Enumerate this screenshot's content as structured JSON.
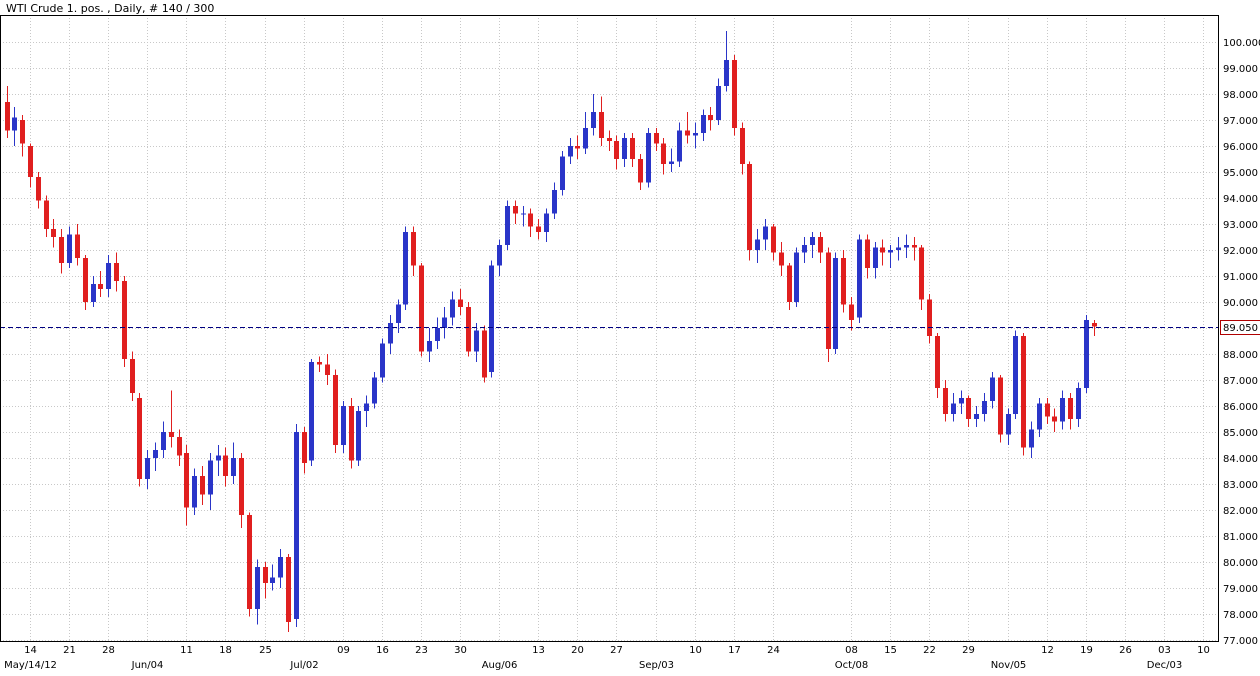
{
  "window": {
    "title": "WTI Crude 1. pos. , Daily, # 140 / 300"
  },
  "chart_data": {
    "type": "candlestick",
    "title": "WTI Crude 1. pos. , Daily, # 140 / 300",
    "instrument": "WTI Crude 1. pos.",
    "period": "Daily",
    "bars_shown": 140,
    "bars_total": 300,
    "ylim": [
      77,
      100
    ],
    "y_tick_step": 1,
    "y_axis_side": "right",
    "grid": true,
    "y_tick_labels": [
      "100.000",
      "99.000",
      "98.000",
      "97.000",
      "96.000",
      "95.000",
      "94.000",
      "93.000",
      "92.000",
      "91.000",
      "90.000",
      "89.000",
      "88.000",
      "87.000",
      "86.000",
      "85.000",
      "84.000",
      "83.000",
      "82.000",
      "81.000",
      "80.000",
      "79.000",
      "78.000",
      "77.000"
    ],
    "x_week_ticks": [
      {
        "i": 3,
        "label": "14"
      },
      {
        "i": 8,
        "label": "21"
      },
      {
        "i": 13,
        "label": "28"
      },
      {
        "i": 18,
        "label": ""
      },
      {
        "i": 23,
        "label": "11"
      },
      {
        "i": 28,
        "label": "18"
      },
      {
        "i": 33,
        "label": "25"
      },
      {
        "i": 38,
        "label": ""
      },
      {
        "i": 43,
        "label": "09"
      },
      {
        "i": 48,
        "label": "16"
      },
      {
        "i": 53,
        "label": "23"
      },
      {
        "i": 58,
        "label": "30"
      },
      {
        "i": 63,
        "label": ""
      },
      {
        "i": 68,
        "label": "13"
      },
      {
        "i": 73,
        "label": "20"
      },
      {
        "i": 78,
        "label": "27"
      },
      {
        "i": 83,
        "label": ""
      },
      {
        "i": 88,
        "label": "10"
      },
      {
        "i": 93,
        "label": "17"
      },
      {
        "i": 98,
        "label": "24"
      },
      {
        "i": 108,
        "label": "08"
      },
      {
        "i": 113,
        "label": "15"
      },
      {
        "i": 118,
        "label": "22"
      },
      {
        "i": 123,
        "label": "29"
      },
      {
        "i": 128,
        "label": ""
      },
      {
        "i": 133,
        "label": "12"
      },
      {
        "i": 138,
        "label": "19"
      },
      {
        "i": 143,
        "label": "26"
      },
      {
        "i": 148,
        "label": "03"
      },
      {
        "i": 153,
        "label": "10"
      }
    ],
    "x_month_ticks": [
      {
        "i": 3,
        "label": "May/14/12"
      },
      {
        "i": 18,
        "label": "Jun/04"
      },
      {
        "i": 38,
        "label": "Jul/02"
      },
      {
        "i": 63,
        "label": "Aug/06"
      },
      {
        "i": 83,
        "label": "Sep/03"
      },
      {
        "i": 108,
        "label": "Oct/08"
      },
      {
        "i": 128,
        "label": "Nov/05"
      },
      {
        "i": 148,
        "label": "Dec/03"
      }
    ],
    "price_line": {
      "value": 89.05,
      "label": "89.050"
    },
    "colors": {
      "up": "#2a35c8",
      "down": "#e01f1f",
      "grid": "#c8c8c8",
      "border": "#000000",
      "price_line": "#000080",
      "price_label": "#b00000",
      "axis_text": "#000000",
      "background": "#ffffff"
    },
    "ohlc": [
      [
        97.7,
        98.3,
        96.3,
        96.6
      ],
      [
        96.6,
        97.5,
        96.0,
        97.1
      ],
      [
        97.0,
        97.2,
        95.6,
        96.1
      ],
      [
        96.0,
        96.1,
        94.4,
        94.8
      ],
      [
        94.8,
        95.0,
        93.6,
        93.9
      ],
      [
        93.9,
        94.1,
        92.5,
        92.8
      ],
      [
        92.8,
        93.2,
        92.1,
        92.5
      ],
      [
        92.5,
        92.8,
        91.1,
        91.5
      ],
      [
        91.5,
        92.9,
        91.3,
        92.6
      ],
      [
        92.6,
        93.0,
        91.4,
        91.7
      ],
      [
        91.7,
        91.8,
        89.7,
        90.0
      ],
      [
        90.0,
        91.0,
        89.8,
        90.7
      ],
      [
        90.7,
        91.2,
        90.2,
        90.5
      ],
      [
        90.5,
        91.8,
        90.2,
        91.5
      ],
      [
        91.5,
        91.9,
        90.4,
        90.8
      ],
      [
        90.8,
        91.0,
        87.5,
        87.8
      ],
      [
        87.8,
        88.1,
        86.2,
        86.5
      ],
      [
        86.3,
        86.5,
        82.9,
        83.2
      ],
      [
        83.2,
        84.3,
        82.8,
        84.0
      ],
      [
        84.0,
        84.6,
        83.5,
        84.3
      ],
      [
        84.3,
        85.4,
        84.0,
        85.0
      ],
      [
        85.0,
        86.6,
        84.4,
        84.8
      ],
      [
        84.8,
        85.1,
        83.7,
        84.1
      ],
      [
        84.2,
        84.5,
        81.4,
        82.1
      ],
      [
        82.1,
        83.6,
        81.8,
        83.3
      ],
      [
        83.3,
        83.7,
        82.2,
        82.6
      ],
      [
        82.6,
        84.2,
        82.0,
        83.9
      ],
      [
        83.9,
        84.5,
        83.3,
        84.1
      ],
      [
        84.1,
        84.4,
        82.9,
        83.3
      ],
      [
        83.3,
        84.6,
        83.0,
        84.0
      ],
      [
        84.0,
        84.2,
        81.3,
        81.8
      ],
      [
        81.8,
        81.9,
        77.9,
        78.2
      ],
      [
        78.2,
        80.1,
        77.6,
        79.8
      ],
      [
        79.8,
        80.0,
        78.6,
        79.2
      ],
      [
        79.2,
        79.9,
        78.9,
        79.4
      ],
      [
        79.4,
        80.5,
        79.0,
        80.2
      ],
      [
        80.2,
        80.3,
        77.3,
        77.7
      ],
      [
        77.8,
        85.3,
        77.5,
        85.0
      ],
      [
        85.0,
        85.2,
        83.4,
        83.8
      ],
      [
        83.9,
        87.8,
        83.7,
        87.7
      ],
      [
        87.7,
        87.9,
        87.3,
        87.6
      ],
      [
        87.6,
        88.0,
        86.8,
        87.2
      ],
      [
        87.2,
        87.4,
        84.2,
        84.5
      ],
      [
        84.5,
        86.2,
        84.2,
        86.0
      ],
      [
        86.0,
        86.3,
        83.6,
        83.9
      ],
      [
        83.9,
        86.0,
        83.7,
        85.8
      ],
      [
        85.8,
        86.4,
        85.2,
        86.1
      ],
      [
        86.1,
        87.3,
        85.9,
        87.1
      ],
      [
        87.1,
        88.6,
        86.9,
        88.4
      ],
      [
        88.4,
        89.5,
        88.0,
        89.2
      ],
      [
        89.2,
        90.1,
        88.8,
        89.9
      ],
      [
        89.9,
        92.9,
        89.7,
        92.7
      ],
      [
        92.7,
        92.9,
        91.0,
        91.4
      ],
      [
        91.4,
        91.5,
        87.9,
        88.1
      ],
      [
        88.1,
        89.0,
        87.7,
        88.5
      ],
      [
        88.5,
        89.4,
        88.2,
        89.0
      ],
      [
        89.0,
        89.8,
        88.6,
        89.4
      ],
      [
        89.4,
        90.4,
        89.1,
        90.1
      ],
      [
        90.1,
        90.5,
        89.5,
        89.8
      ],
      [
        89.8,
        90.0,
        87.9,
        88.1
      ],
      [
        88.1,
        89.2,
        87.7,
        88.9
      ],
      [
        88.9,
        89.1,
        86.9,
        87.1
      ],
      [
        87.3,
        91.6,
        87.1,
        91.4
      ],
      [
        91.4,
        92.4,
        91.0,
        92.2
      ],
      [
        92.2,
        93.9,
        92.0,
        93.7
      ],
      [
        93.7,
        93.9,
        93.0,
        93.4
      ],
      [
        93.4,
        93.7,
        92.9,
        93.4
      ],
      [
        93.4,
        93.6,
        92.5,
        92.9
      ],
      [
        92.9,
        93.2,
        92.4,
        92.7
      ],
      [
        92.7,
        93.6,
        92.3,
        93.4
      ],
      [
        93.4,
        94.6,
        93.2,
        94.3
      ],
      [
        94.3,
        95.8,
        94.1,
        95.6
      ],
      [
        95.6,
        96.3,
        95.3,
        96.0
      ],
      [
        96.0,
        96.4,
        95.5,
        95.9
      ],
      [
        95.9,
        97.3,
        95.7,
        96.7
      ],
      [
        96.7,
        98.0,
        96.4,
        97.3
      ],
      [
        97.3,
        97.9,
        96.0,
        96.3
      ],
      [
        96.3,
        96.6,
        95.8,
        96.2
      ],
      [
        96.2,
        96.4,
        95.1,
        95.5
      ],
      [
        95.5,
        96.5,
        95.2,
        96.3
      ],
      [
        96.3,
        96.5,
        95.2,
        95.5
      ],
      [
        95.5,
        95.7,
        94.3,
        94.6
      ],
      [
        94.6,
        96.7,
        94.4,
        96.5
      ],
      [
        96.5,
        96.7,
        95.8,
        96.1
      ],
      [
        96.1,
        96.3,
        94.9,
        95.3
      ],
      [
        95.3,
        95.9,
        95.0,
        95.4
      ],
      [
        95.4,
        96.9,
        95.2,
        96.6
      ],
      [
        96.6,
        97.3,
        96.1,
        96.4
      ],
      [
        96.4,
        96.9,
        95.9,
        96.5
      ],
      [
        96.5,
        97.4,
        96.2,
        97.2
      ],
      [
        97.2,
        97.5,
        96.6,
        97.0
      ],
      [
        97.0,
        98.6,
        96.8,
        98.3
      ],
      [
        98.3,
        100.42,
        98.1,
        99.3
      ],
      [
        99.3,
        99.5,
        96.4,
        96.7
      ],
      [
        96.7,
        96.9,
        94.9,
        95.3
      ],
      [
        95.3,
        95.4,
        91.6,
        92.0
      ],
      [
        92.0,
        92.8,
        91.5,
        92.4
      ],
      [
        92.4,
        93.2,
        92.0,
        92.9
      ],
      [
        92.9,
        93.0,
        91.6,
        91.9
      ],
      [
        91.9,
        92.3,
        91.0,
        91.4
      ],
      [
        91.4,
        91.5,
        89.7,
        90.0
      ],
      [
        90.0,
        92.1,
        89.8,
        91.9
      ],
      [
        91.9,
        92.5,
        91.5,
        92.2
      ],
      [
        92.2,
        92.7,
        91.7,
        92.5
      ],
      [
        92.5,
        92.7,
        91.5,
        91.9
      ],
      [
        91.9,
        92.1,
        87.7,
        88.2
      ],
      [
        88.2,
        91.9,
        88.0,
        91.7
      ],
      [
        91.7,
        92.0,
        89.6,
        89.9
      ],
      [
        89.9,
        90.2,
        88.9,
        89.3
      ],
      [
        89.4,
        92.6,
        89.2,
        92.4
      ],
      [
        92.4,
        92.6,
        90.9,
        91.3
      ],
      [
        91.3,
        92.3,
        90.9,
        92.1
      ],
      [
        92.1,
        92.4,
        91.4,
        91.9
      ],
      [
        91.9,
        92.2,
        91.3,
        92.0
      ],
      [
        92.0,
        92.5,
        91.6,
        92.1
      ],
      [
        92.1,
        92.6,
        91.7,
        92.2
      ],
      [
        92.2,
        92.5,
        91.6,
        92.1
      ],
      [
        92.1,
        92.2,
        89.7,
        90.1
      ],
      [
        90.1,
        90.3,
        88.4,
        88.7
      ],
      [
        88.7,
        88.8,
        86.3,
        86.7
      ],
      [
        86.7,
        87.0,
        85.4,
        85.7
      ],
      [
        85.7,
        86.5,
        85.4,
        86.1
      ],
      [
        86.1,
        86.6,
        85.7,
        86.3
      ],
      [
        86.3,
        86.4,
        85.2,
        85.5
      ],
      [
        85.5,
        86.0,
        85.2,
        85.7
      ],
      [
        85.7,
        86.5,
        85.4,
        86.2
      ],
      [
        86.2,
        87.3,
        85.9,
        87.1
      ],
      [
        87.1,
        87.2,
        84.6,
        84.9
      ],
      [
        84.9,
        85.9,
        84.5,
        85.7
      ],
      [
        85.7,
        88.9,
        85.5,
        88.7
      ],
      [
        88.7,
        88.8,
        84.1,
        84.4
      ],
      [
        84.4,
        85.4,
        84.0,
        85.1
      ],
      [
        85.1,
        86.3,
        84.8,
        86.1
      ],
      [
        86.1,
        86.3,
        85.3,
        85.6
      ],
      [
        85.6,
        85.9,
        85.0,
        85.4
      ],
      [
        85.4,
        86.6,
        85.1,
        86.3
      ],
      [
        86.3,
        86.5,
        85.1,
        85.5
      ],
      [
        85.5,
        86.9,
        85.2,
        86.7
      ],
      [
        86.7,
        89.5,
        86.5,
        89.3
      ],
      [
        89.2,
        89.3,
        88.7,
        89.05
      ]
    ]
  }
}
